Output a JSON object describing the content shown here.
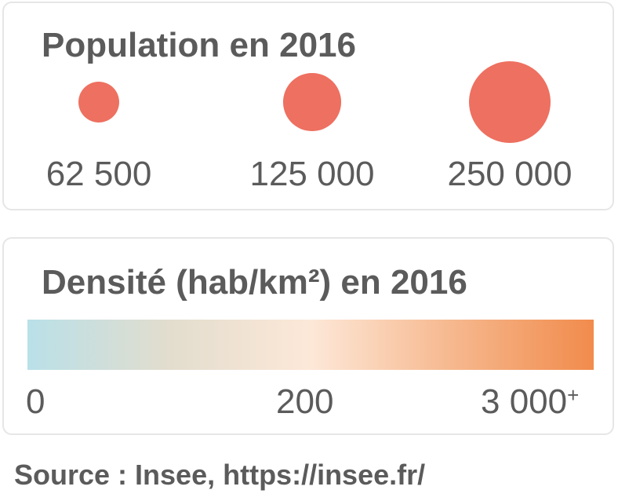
{
  "population": {
    "title": "Population en 2016",
    "bubble_color": "#ee7060",
    "items": [
      {
        "value": 62500,
        "label": "62 500"
      },
      {
        "value": 125000,
        "label": "125 000"
      },
      {
        "value": 250000,
        "label": "250 000"
      }
    ]
  },
  "density": {
    "title": "Densité (hab/km²) en 2016",
    "gradient_colors": [
      "#b9e0e8",
      "#e2ddce",
      "#fde8d8",
      "#f6b88e",
      "#f18b4c"
    ],
    "ticks": [
      {
        "label": "0",
        "suffix": ""
      },
      {
        "label": "200",
        "suffix": ""
      },
      {
        "label": "3 000",
        "suffix": "+"
      }
    ]
  },
  "source": "Source : Insee, https://insee.fr/"
}
